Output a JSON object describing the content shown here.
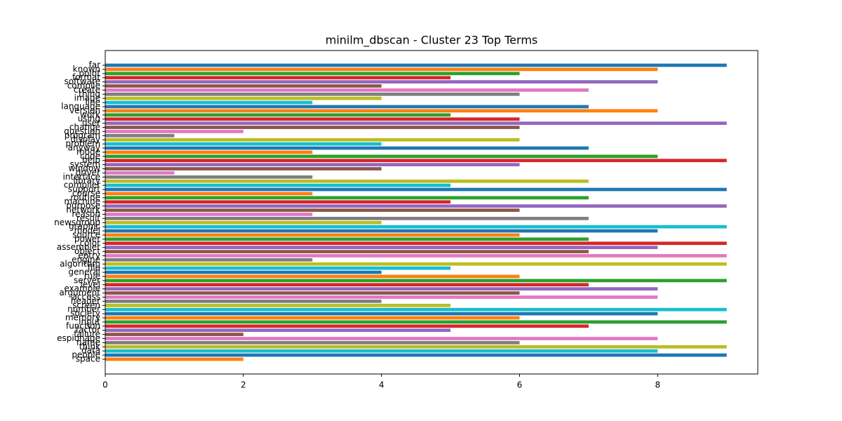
{
  "chart_data": {
    "type": "barh",
    "title": "minilm_dbscan - Cluster 23 Top Terms",
    "categories": [
      "far",
      "known",
      "point",
      "format",
      "software",
      "compile",
      "create",
      "thing",
      "image",
      "line",
      "language",
      "version",
      "work",
      "using",
      "user",
      "change",
      "question",
      "program",
      "display",
      "problem",
      "anyway",
      "mode",
      "code",
      "help",
      "system",
      "window",
      "driver",
      "interface",
      "library",
      "compiler",
      "support",
      "course",
      "routine",
      "machine",
      "purpose",
      "network",
      "reason",
      "result",
      "newsgroup",
      "graphic",
      "model",
      "source",
      "power",
      "color",
      "assembler",
      "object",
      "entry",
      "engine",
      "algorithm",
      "file",
      "general",
      "rule",
      "server",
      "level",
      "example",
      "argument",
      "access",
      "header",
      "screen",
      "number",
      "society",
      "memory",
      "input",
      "function",
      "factor",
      "failure",
      "espionage",
      "name",
      "think",
      "data",
      "people",
      "space"
    ],
    "values": [
      9,
      8,
      6,
      5,
      8,
      4,
      7,
      6,
      4,
      3,
      7,
      8,
      5,
      6,
      9,
      6,
      2,
      1,
      6,
      4,
      7,
      3,
      8,
      9,
      6,
      4,
      1,
      3,
      7,
      5,
      9,
      3,
      7,
      5,
      9,
      6,
      3,
      7,
      4,
      9,
      8,
      6,
      7,
      9,
      8,
      7,
      9,
      3,
      9,
      5,
      4,
      6,
      9,
      7,
      8,
      6,
      8,
      4,
      5,
      9,
      8,
      6,
      9,
      7,
      5,
      2,
      8,
      6,
      9,
      8,
      9,
      2
    ],
    "colors": [
      "#1f77b4",
      "#ff7f0e",
      "#2ca02c",
      "#d62728",
      "#9467bd",
      "#8c564b",
      "#e377c2",
      "#7f7f7f",
      "#bcbd22",
      "#17becf"
    ],
    "xlim": [
      0,
      9.45
    ],
    "xticks": [
      0,
      2,
      4,
      6,
      8
    ]
  }
}
